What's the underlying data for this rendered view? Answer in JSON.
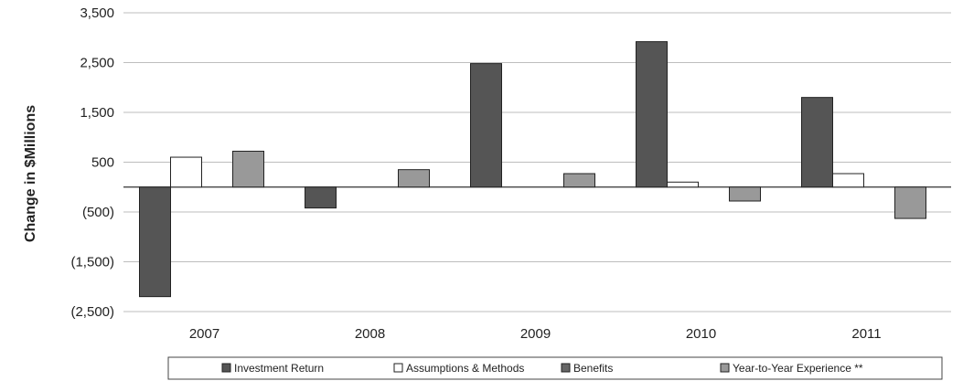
{
  "chart_data": {
    "type": "bar",
    "categories": [
      "2007",
      "2008",
      "2009",
      "2010",
      "2011"
    ],
    "series": [
      {
        "name": "Investment Return",
        "color": "#555555",
        "values": [
          -2200,
          -420,
          2480,
          2920,
          1800
        ]
      },
      {
        "name": "Assumptions & Methods",
        "color": "#ffffff",
        "values": [
          600,
          0,
          0,
          100,
          270
        ]
      },
      {
        "name": "Benefits",
        "color": "#666666",
        "values": [
          0,
          0,
          0,
          0,
          0
        ]
      },
      {
        "name": "Year-to-Year Experience **",
        "color": "#999999",
        "values": [
          720,
          350,
          270,
          -280,
          -630
        ]
      }
    ],
    "title": "",
    "xlabel": "",
    "ylabel": "Change in $Millions",
    "ylim": [
      -2500,
      3500
    ],
    "yticks": [
      3500,
      2500,
      1500,
      500,
      -500,
      -1500,
      -2500
    ],
    "ytick_labels": [
      "3,500",
      "2,500",
      "1,500",
      "500",
      "(500)",
      "(1,500)",
      "(2,500)"
    ],
    "grid": true,
    "legend": "bottom"
  }
}
